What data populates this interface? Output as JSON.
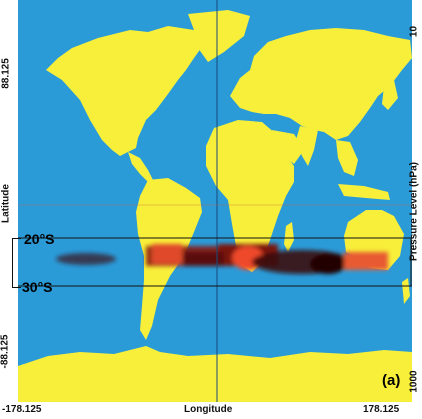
{
  "axes": {
    "x_label": "Longitude",
    "x_min": "-178.125",
    "x_max": "178.125",
    "y_label": "Latitude",
    "y_max": "88.125",
    "y_min": "-88.125",
    "right_label": "Pressure Level (hPa)",
    "right_top": "10",
    "right_bottom": "1000"
  },
  "annotations": {
    "band_north": "20°S",
    "band_south": "30°S",
    "panel": "(a)"
  },
  "colors": {
    "ocean": "#2b9bd8",
    "land": "#f8ef3a",
    "heat_low": "#d84a2a",
    "heat_mid": "#8a1a12",
    "heat_high": "#3a0a0a"
  },
  "map": {
    "lon_range": [
      -178.125,
      178.125
    ],
    "lat_range": [
      -88.125,
      88.125
    ],
    "band_lat_range": [
      -30,
      -20
    ]
  }
}
